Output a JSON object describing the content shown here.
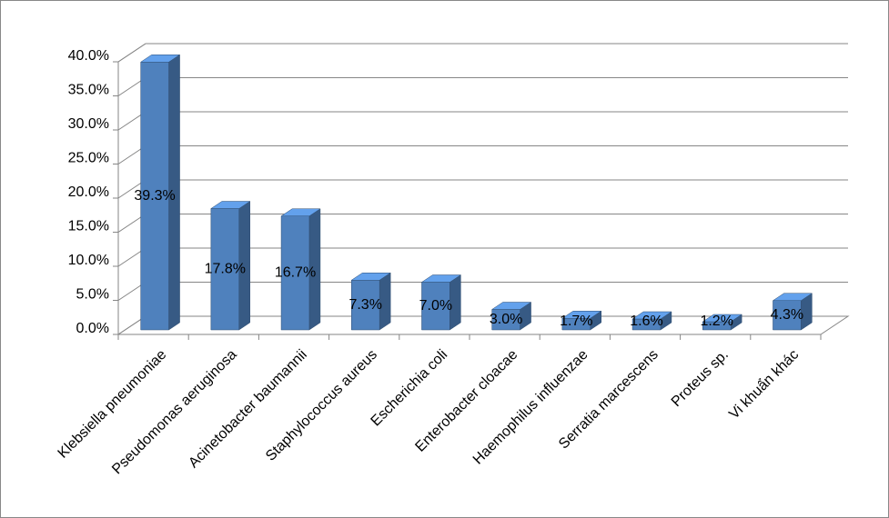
{
  "chart_data": {
    "type": "bar3d",
    "categories": [
      "Klebsiella pneumoniae",
      "Pseudomonas aeruginosa",
      "Acinetobacter baumannii",
      "Staphylococcus aureus",
      "Escherichia coli",
      "Enterobacter cloacae",
      "Haemophilus influenzae",
      "Serratia marcescens",
      "Proteus sp.",
      "Vi khuẩn khác"
    ],
    "values": [
      39.3,
      17.8,
      16.7,
      7.3,
      7.0,
      3.0,
      1.7,
      1.6,
      1.2,
      4.3
    ],
    "value_labels": [
      "39.3%",
      "17.8%",
      "16.7%",
      "7.3%",
      "7.0%",
      "3.0%",
      "1.7%",
      "1.6%",
      "1.2%",
      "4.3%"
    ],
    "color": "#4f81bd",
    "ylim": [
      0,
      40
    ],
    "yticks": [
      {
        "value": 0,
        "label": "0.0%"
      },
      {
        "value": 5,
        "label": "5.0%"
      },
      {
        "value": 10,
        "label": "10.0%"
      },
      {
        "value": 15,
        "label": "15.0%"
      },
      {
        "value": 20,
        "label": "20.0%"
      },
      {
        "value": 25,
        "label": "25.0%"
      },
      {
        "value": 30,
        "label": "30.0%"
      },
      {
        "value": 35,
        "label": "35.0%"
      },
      {
        "value": 40,
        "label": "40.0%"
      }
    ],
    "grid": true
  }
}
